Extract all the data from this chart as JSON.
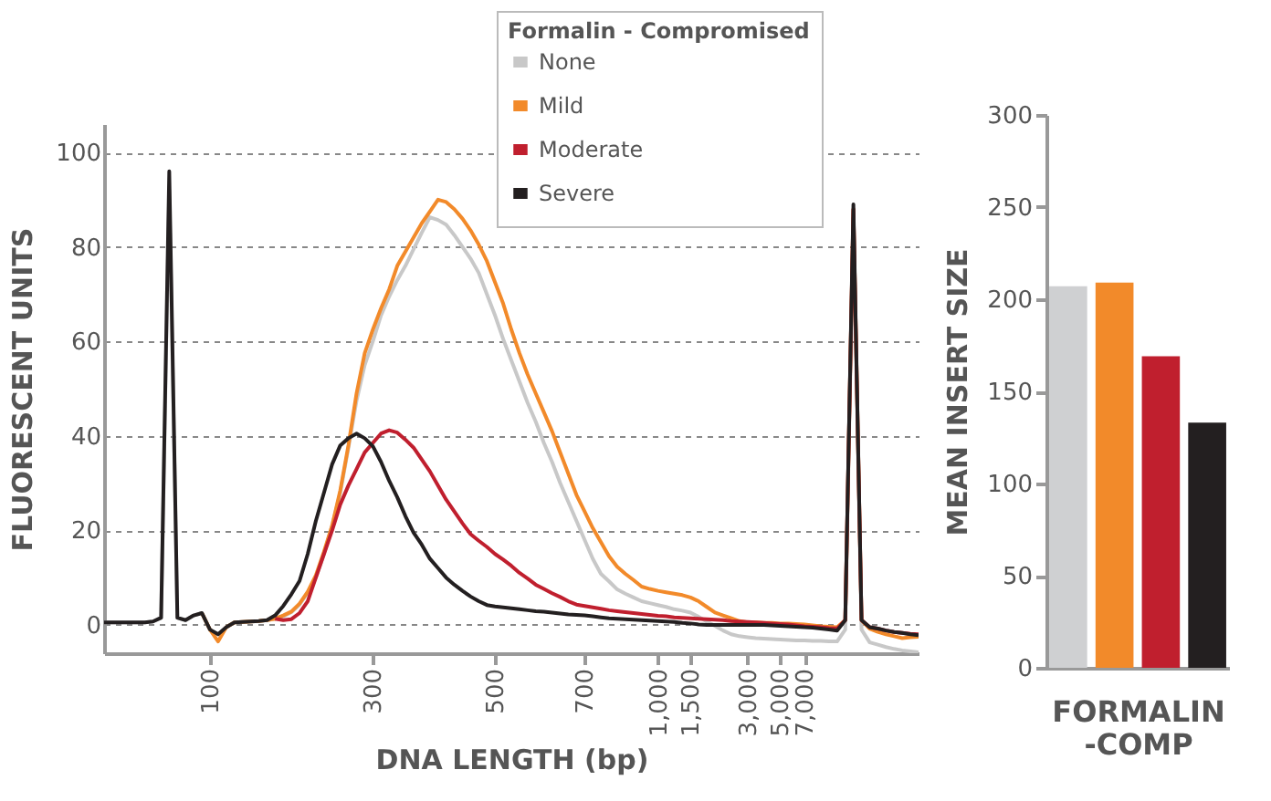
{
  "chart_data": [
    {
      "type": "line",
      "xlabel": "DNA LENGTH (bp)",
      "ylabel": "FLUORESCENT UNITS",
      "legend_title": "Formalin - Compromised",
      "legend": "top right",
      "grid": "y",
      "ylim": [
        -6,
        106
      ],
      "yticks": [
        0,
        20,
        40,
        60,
        80,
        100
      ],
      "categories": [
        null,
        null,
        null,
        null,
        null,
        null,
        null,
        null,
        null,
        null,
        null,
        null,
        null,
        "100",
        null,
        null,
        null,
        null,
        null,
        null,
        null,
        null,
        null,
        null,
        null,
        null,
        null,
        null,
        null,
        null,
        null,
        null,
        null,
        "300",
        null,
        null,
        null,
        null,
        null,
        null,
        null,
        null,
        null,
        null,
        null,
        null,
        null,
        null,
        "500",
        null,
        null,
        null,
        null,
        null,
        null,
        null,
        null,
        null,
        null,
        "700",
        null,
        null,
        null,
        null,
        null,
        null,
        null,
        null,
        "1,000",
        null,
        null,
        null,
        "1,500",
        null,
        null,
        null,
        null,
        null,
        null,
        "3,000",
        null,
        null,
        null,
        "5,000",
        null,
        null,
        "7,000",
        null,
        null,
        null,
        null,
        null,
        null,
        null,
        null,
        null,
        null,
        null,
        null,
        null,
        null
      ],
      "series": [
        {
          "name": "None",
          "color": "#c8c8c8",
          "values": [
            0.5,
            0.5,
            0.5,
            0.5,
            0.5,
            0.5,
            0.7,
            1.5,
            92,
            1.5,
            1,
            2,
            2.5,
            -1,
            -2,
            -0.5,
            0.5,
            0.6,
            0.7,
            0.8,
            1,
            1.3,
            1.8,
            2.7,
            4.3,
            6.8,
            10,
            15,
            21,
            28,
            37.5,
            47.5,
            55,
            60,
            65.5,
            69.5,
            73,
            76,
            79.5,
            83,
            86.3,
            85.7,
            84.7,
            82.5,
            80,
            77.5,
            74.5,
            70,
            65.5,
            60.5,
            56,
            51.5,
            47,
            43,
            38.5,
            34.5,
            30,
            26,
            22,
            18,
            14,
            10.8,
            9.2,
            7.5,
            6.6,
            5.8,
            5,
            4.6,
            4.2,
            3.8,
            3.3,
            3,
            2.6,
            1.7,
            0.7,
            -0.2,
            -1.2,
            -2,
            -2.4,
            -2.6,
            -2.8,
            -2.9,
            -3,
            -3.1,
            -3.2,
            -3.3,
            -3.3,
            -3.4,
            -3.4,
            -3.5,
            -3.5,
            -1,
            86,
            -1,
            -3.7,
            -4.2,
            -4.7,
            -5.1,
            -5.4,
            -5.6,
            -5.8
          ]
        },
        {
          "name": "Mild",
          "color": "#f28a2a",
          "values": [
            null,
            null,
            null,
            null,
            null,
            null,
            null,
            null,
            null,
            null,
            null,
            null,
            2.5,
            -1,
            -3.5,
            -0.5,
            0.5,
            0.6,
            0.7,
            0.8,
            1,
            1.3,
            2,
            2.8,
            4.5,
            7,
            10.5,
            15.5,
            21,
            28.5,
            38,
            49,
            57.5,
            62.5,
            67,
            71,
            76,
            79,
            82,
            85,
            87.5,
            90,
            89.5,
            88,
            86,
            83.5,
            80.5,
            77,
            72.5,
            68,
            62.5,
            57.5,
            53,
            49,
            45,
            41,
            36.5,
            32,
            27.5,
            24,
            20.5,
            17.5,
            14.5,
            12.3,
            10.8,
            9.5,
            8.1,
            7.6,
            7.2,
            6.9,
            6.6,
            6.3,
            5.8,
            5,
            3.8,
            2.6,
            2,
            1.4,
            0.8,
            0.5,
            0.5,
            0.4,
            0.4,
            0.3,
            0.3,
            0.2,
            0.1,
            -0.1,
            -0.3,
            -0.4,
            -0.5,
            1,
            88,
            1,
            -0.8,
            -1.5,
            -2,
            -2.4,
            -2.8,
            -2.6,
            -2.5
          ]
        },
        {
          "name": "Moderate",
          "color": "#c01f2e",
          "values": [
            null,
            null,
            null,
            null,
            null,
            null,
            null,
            null,
            null,
            null,
            null,
            null,
            null,
            null,
            null,
            null,
            null,
            null,
            null,
            null,
            null,
            1.3,
            1,
            1.2,
            2.5,
            5,
            10,
            15,
            20,
            25.5,
            29.5,
            33,
            36.5,
            38.5,
            40.5,
            41.2,
            40.7,
            39.2,
            37.5,
            35,
            32.5,
            29.5,
            26.5,
            24,
            21.5,
            19.2,
            17.8,
            16.5,
            15,
            13.8,
            12.5,
            11,
            9.8,
            8.5,
            7.6,
            6.7,
            5.9,
            5,
            4.3,
            4,
            3.7,
            3.4,
            3.1,
            2.9,
            2.7,
            2.5,
            2.3,
            2.1,
            1.9,
            1.8,
            1.6,
            1.5,
            1.4,
            1.3,
            1.2,
            1.1,
            1,
            0.8,
            0.7,
            0.6,
            0.5,
            0.4,
            0.3,
            0.2,
            0.1,
            -0.1,
            -0.3,
            -0.4,
            -0.5,
            -0.7,
            -0.8,
            1,
            88,
            1,
            -0.5,
            -0.8,
            -1.2,
            -1.5,
            -1.7,
            -1.9,
            -2
          ]
        },
        {
          "name": "Severe",
          "color": "#231f20",
          "values": [
            0.5,
            0.5,
            0.5,
            0.5,
            0.5,
            0.5,
            0.7,
            1.5,
            96,
            1.5,
            1,
            2,
            2.5,
            -1,
            -2,
            -0.5,
            0.5,
            0.6,
            0.7,
            0.8,
            1,
            2,
            4,
            6.5,
            9.3,
            15,
            22,
            28,
            34,
            38,
            39.5,
            40.5,
            39.5,
            37.8,
            34.5,
            30.5,
            27,
            23,
            19.5,
            17,
            14,
            12,
            10,
            8.5,
            7.2,
            6,
            5,
            4.2,
            3.9,
            3.7,
            3.5,
            3.3,
            3.1,
            2.9,
            2.8,
            2.6,
            2.4,
            2.2,
            2.1,
            2,
            1.8,
            1.6,
            1.4,
            1.3,
            1.2,
            1.1,
            1,
            0.9,
            0.8,
            0.7,
            0.6,
            0.4,
            0.3,
            0.1,
            0,
            0,
            0,
            0,
            0,
            0,
            0,
            0,
            -0.1,
            -0.2,
            -0.3,
            -0.4,
            -0.5,
            -0.6,
            -0.8,
            -1,
            -1.2,
            1,
            89,
            1,
            -0.5,
            -0.8,
            -1.2,
            -1.5,
            -1.7,
            -2,
            -2.2
          ]
        }
      ]
    },
    {
      "type": "bar",
      "xlabel": "FORMALIN -COMP",
      "ylabel": "MEAN INSERT SIZE",
      "categories": [
        null,
        null,
        null,
        null
      ],
      "values": [
        207,
        209,
        169,
        133
      ],
      "colors": [
        "#cfd0d2",
        "#f28a2a",
        "#c01f2e",
        "#231f20"
      ],
      "ylim": [
        0,
        300
      ],
      "yticks": [
        0,
        50,
        100,
        150,
        200,
        250,
        300
      ],
      "grid": false
    }
  ]
}
